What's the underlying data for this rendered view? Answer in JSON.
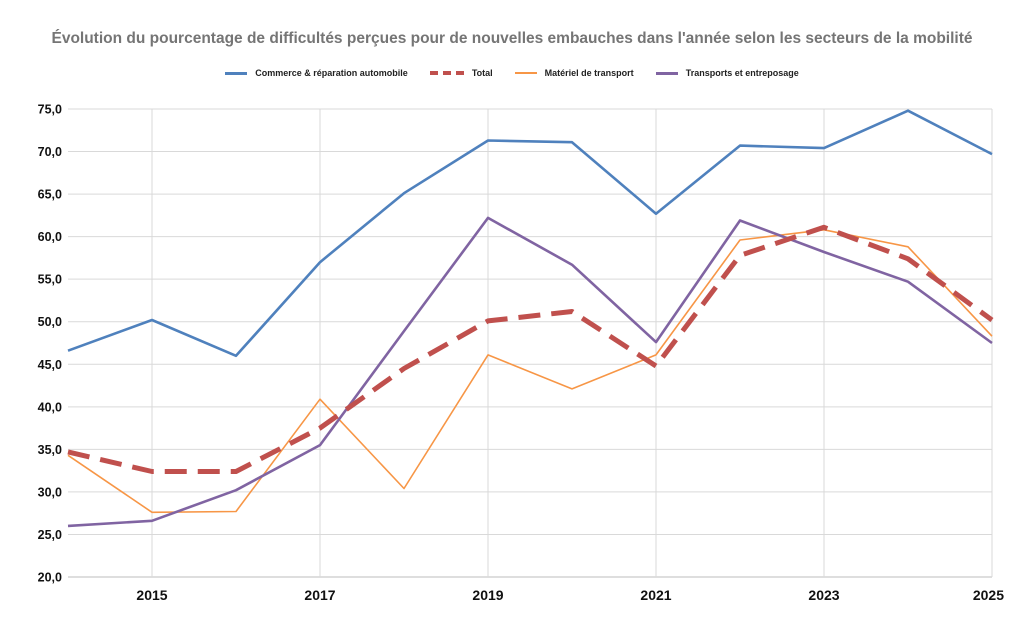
{
  "chart_data": {
    "type": "line",
    "title": "Évolution du pourcentage de difficultés perçues pour de nouvelles embauches dans l'année selon les secteurs de la mobilité",
    "xlabel": "",
    "ylabel": "",
    "x": [
      2014,
      2015,
      2016,
      2017,
      2018,
      2019,
      2020,
      2021,
      2022,
      2023,
      2024,
      2025
    ],
    "xlim": [
      2014,
      2025
    ],
    "ylim": [
      20,
      75
    ],
    "x_tick_labels": [
      "2015",
      "2017",
      "2019",
      "2021",
      "2023",
      "2025"
    ],
    "y_tick_labels": [
      "20,0",
      "25,0",
      "30,0",
      "35,0",
      "40,0",
      "45,0",
      "50,0",
      "55,0",
      "60,0",
      "65,0",
      "70,0",
      "75,0"
    ],
    "grid": true,
    "legend_position": "top",
    "series": [
      {
        "name": "Commerce & réparation automobile",
        "color": "#4F81BD",
        "style": "solid-medium",
        "values": [
          46.6,
          50.2,
          46.0,
          57.0,
          65.1,
          71.3,
          71.1,
          62.7,
          70.7,
          70.4,
          74.8,
          69.7
        ]
      },
      {
        "name": "Total",
        "color": "#C0504D",
        "style": "dashed-thick",
        "values": [
          34.7,
          32.4,
          32.4,
          37.5,
          44.5,
          50.1,
          51.2,
          44.8,
          57.8,
          61.1,
          57.4,
          50.2
        ]
      },
      {
        "name": "Matériel de transport",
        "color": "#F79646",
        "style": "solid-thin",
        "values": [
          34.3,
          27.6,
          27.7,
          40.9,
          30.4,
          46.1,
          42.1,
          46.1,
          59.6,
          60.8,
          58.8,
          48.3
        ]
      },
      {
        "name": "Transports et entreposage",
        "color": "#8064A2",
        "style": "solid-medium",
        "values": [
          26.0,
          26.6,
          30.2,
          35.5,
          48.9,
          62.2,
          56.7,
          47.6,
          61.9,
          58.2,
          54.7,
          47.5
        ]
      }
    ]
  }
}
